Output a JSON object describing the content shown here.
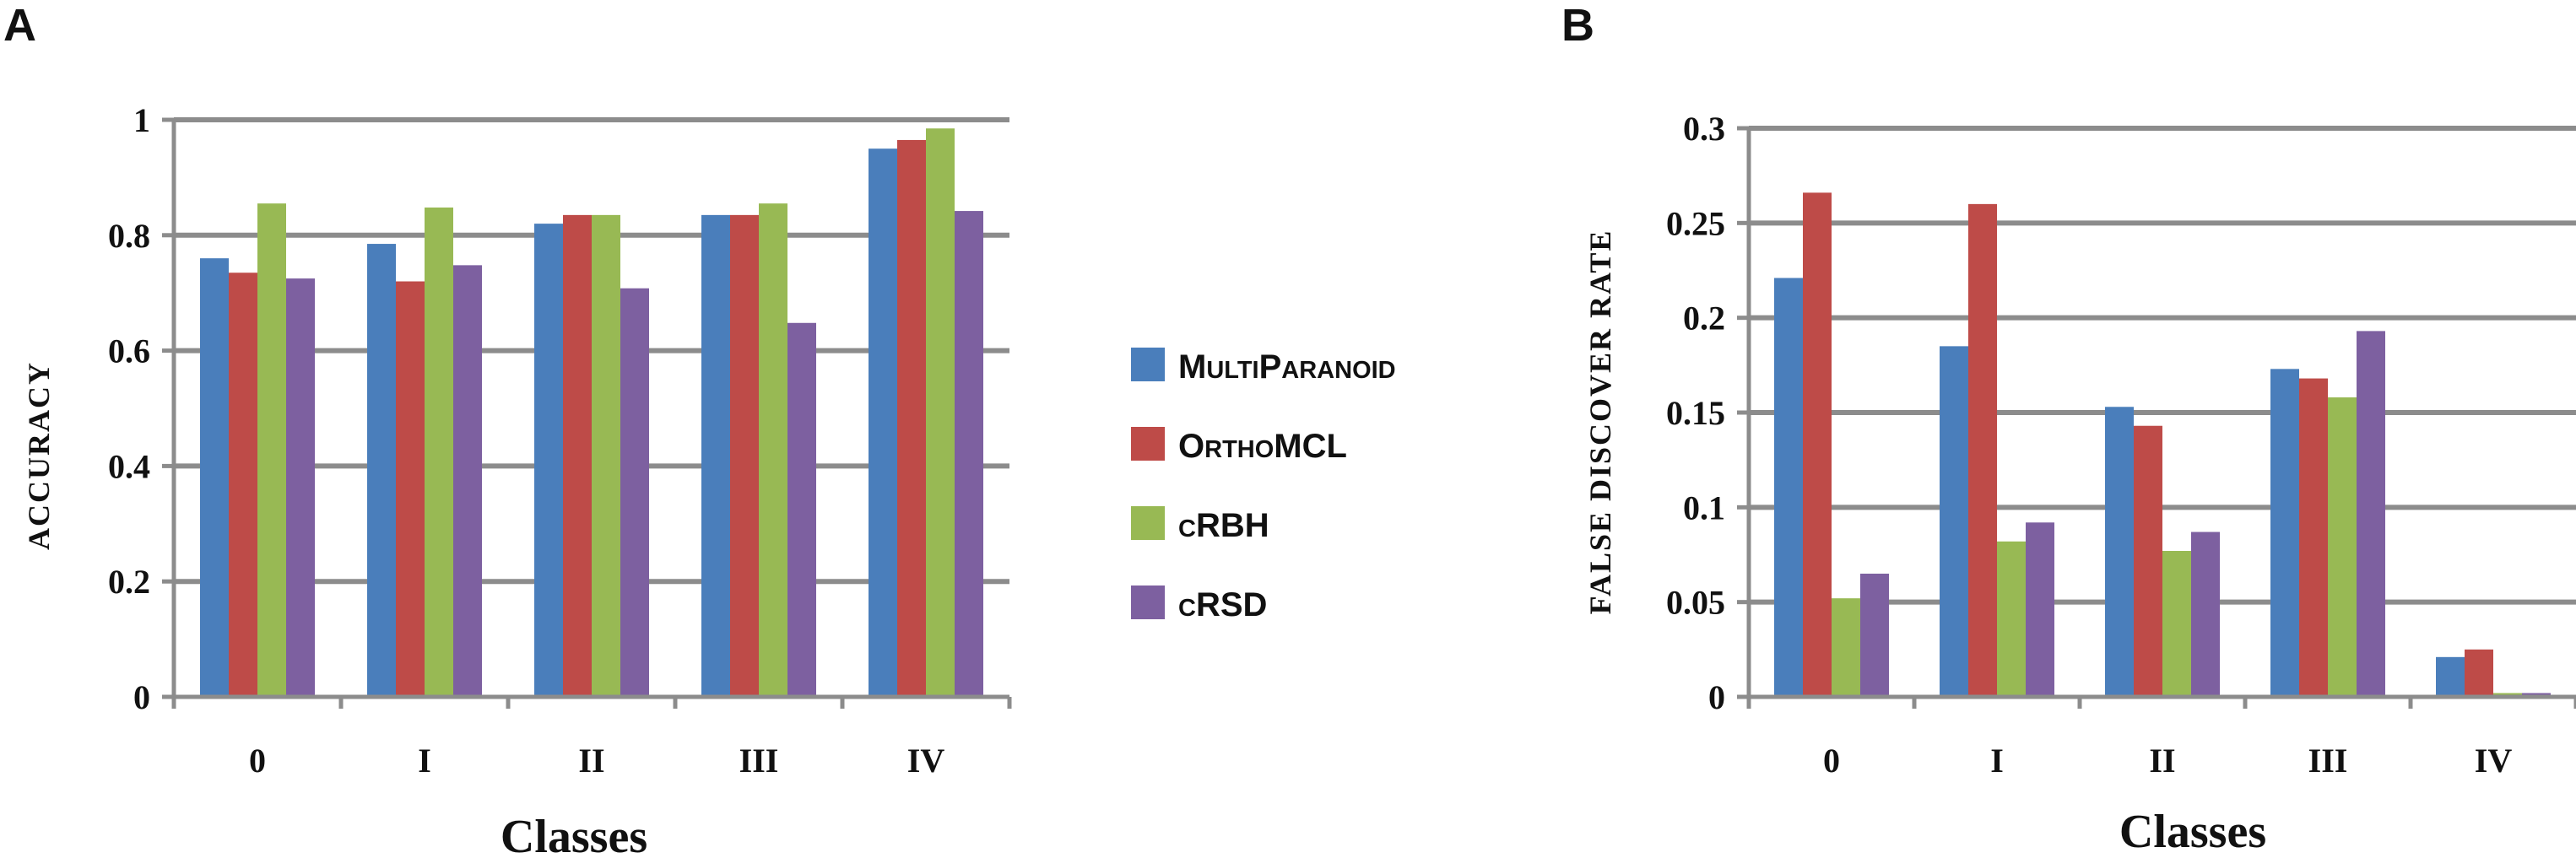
{
  "legend": {
    "entries": [
      {
        "name": "MultiParanoid",
        "big1": "M",
        "small1": "ULTI",
        "big2": "P",
        "small2": "ARANOID",
        "color": "#4a7ebb"
      },
      {
        "name": "OrthoMCL",
        "big1": "O",
        "small1": "RTHO",
        "big2": "MCL",
        "small2": "",
        "color": "#be4b48"
      },
      {
        "name": "cRBH",
        "big1": "",
        "small1": "C",
        "big2": "RBH",
        "small2": "",
        "color": "#98b954"
      },
      {
        "name": "cRSD",
        "big1": "",
        "small1": "C",
        "big2": "RSD",
        "small2": "",
        "color": "#7d60a0"
      }
    ]
  },
  "chart_data": [
    {
      "panel_letter": "A",
      "type": "bar",
      "categories": [
        "0",
        "I",
        "II",
        "III",
        "IV"
      ],
      "xlabel": "Classes",
      "ylabel": "ACCURACY",
      "ylim": [
        0,
        1
      ],
      "yticks": [
        "0",
        "0.2",
        "0.4",
        "0.6",
        "0.8",
        "1"
      ],
      "grid": true,
      "series": [
        {
          "name": "MultiParanoid",
          "color": "#4a7ebb",
          "values": [
            0.76,
            0.785,
            0.82,
            0.835,
            0.95
          ]
        },
        {
          "name": "OrthoMCL",
          "color": "#be4b48",
          "values": [
            0.735,
            0.72,
            0.835,
            0.835,
            0.965
          ]
        },
        {
          "name": "cRBH",
          "color": "#98b954",
          "values": [
            0.855,
            0.848,
            0.835,
            0.855,
            0.985
          ]
        },
        {
          "name": "cRSD",
          "color": "#7d60a0",
          "values": [
            0.725,
            0.748,
            0.708,
            0.648,
            0.842
          ]
        }
      ]
    },
    {
      "panel_letter": "B",
      "type": "bar",
      "categories": [
        "0",
        "I",
        "II",
        "III",
        "IV"
      ],
      "xlabel": "Classes",
      "ylabel": "FALSE DISCOVER RATE",
      "ylim": [
        0,
        0.3
      ],
      "yticks": [
        "0",
        "0.05",
        "0.1",
        "0.15",
        "0.2",
        "0.25",
        "0.3"
      ],
      "grid": true,
      "series": [
        {
          "name": "MultiParanoid",
          "color": "#4a7ebb",
          "values": [
            0.221,
            0.185,
            0.153,
            0.173,
            0.021
          ]
        },
        {
          "name": "OrthoMCL",
          "color": "#be4b48",
          "values": [
            0.266,
            0.26,
            0.143,
            0.168,
            0.025
          ]
        },
        {
          "name": "cRBH",
          "color": "#98b954",
          "values": [
            0.052,
            0.082,
            0.077,
            0.158,
            0.002
          ]
        },
        {
          "name": "cRSD",
          "color": "#7d60a0",
          "values": [
            0.065,
            0.092,
            0.087,
            0.193,
            0.002
          ]
        }
      ]
    }
  ]
}
